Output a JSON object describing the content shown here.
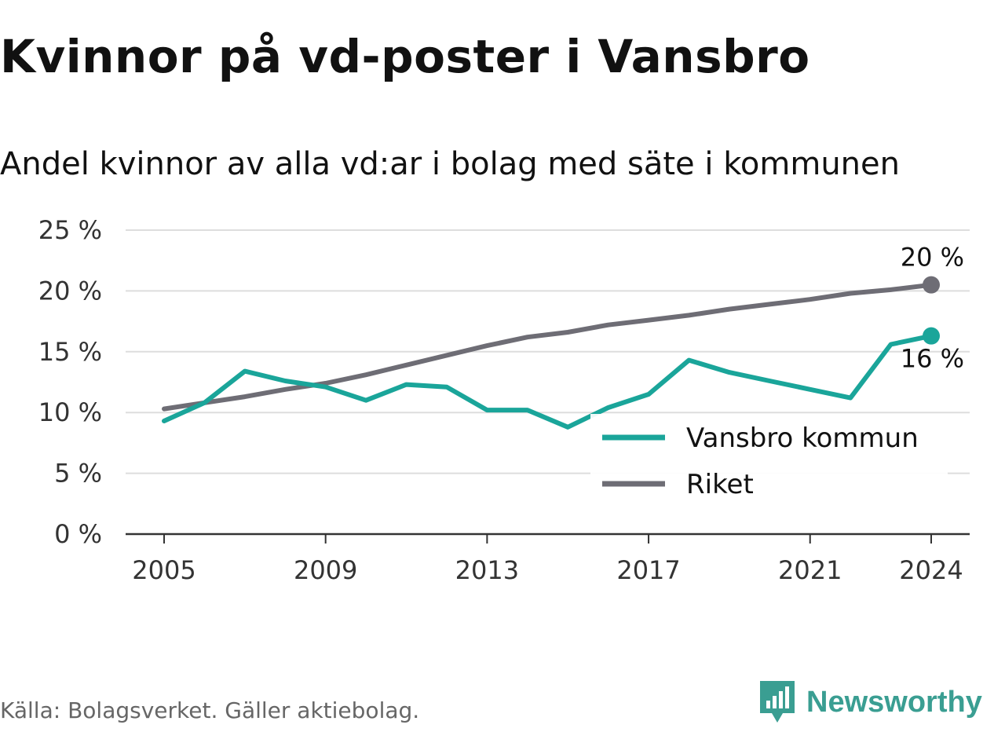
{
  "title": "Kvinnor på vd-poster i Vansbro",
  "subtitle": "Andel kvinnor av alla vd:ar i bolag med säte i kommunen",
  "source": "Källa: Bolagsverket. Gäller aktiebolag.",
  "brand": {
    "name": "Newsworthy",
    "icon": "newsworthy-logo-icon",
    "color": "#3a9e92"
  },
  "chart_data": {
    "type": "line",
    "x_ticks": [
      "2005",
      "2009",
      "2013",
      "2017",
      "2021",
      "2024"
    ],
    "y_ticks": [
      "0 %",
      "5 %",
      "10 %",
      "15 %",
      "20 %",
      "25 %"
    ],
    "ylim": [
      0,
      25
    ],
    "xlim": [
      2004,
      2025
    ],
    "grid": true,
    "legend_placement": "bottom-right",
    "series": [
      {
        "name": "Vansbro kommun",
        "color": "#1aa59a",
        "x": [
          2005,
          2006,
          2007,
          2008,
          2009,
          2010,
          2011,
          2012,
          2013,
          2014,
          2015,
          2016,
          2017,
          2018,
          2019,
          2020,
          2021,
          2022,
          2023,
          2024
        ],
        "values": [
          9.3,
          10.8,
          13.4,
          12.6,
          12.1,
          11.0,
          12.3,
          12.1,
          10.2,
          10.2,
          8.8,
          10.4,
          11.5,
          14.3,
          13.3,
          12.6,
          11.9,
          11.2,
          15.6,
          16.3
        ],
        "end_label": "16 %"
      },
      {
        "name": "Riket",
        "color": "#6e6d75",
        "x": [
          2005,
          2006,
          2007,
          2008,
          2009,
          2010,
          2011,
          2012,
          2013,
          2014,
          2015,
          2016,
          2017,
          2018,
          2019,
          2020,
          2021,
          2022,
          2023,
          2024
        ],
        "values": [
          10.3,
          10.8,
          11.3,
          11.9,
          12.4,
          13.1,
          13.9,
          14.7,
          15.5,
          16.2,
          16.6,
          17.2,
          17.6,
          18.0,
          18.5,
          18.9,
          19.3,
          19.8,
          20.1,
          20.5
        ],
        "end_label": "20 %"
      }
    ]
  }
}
